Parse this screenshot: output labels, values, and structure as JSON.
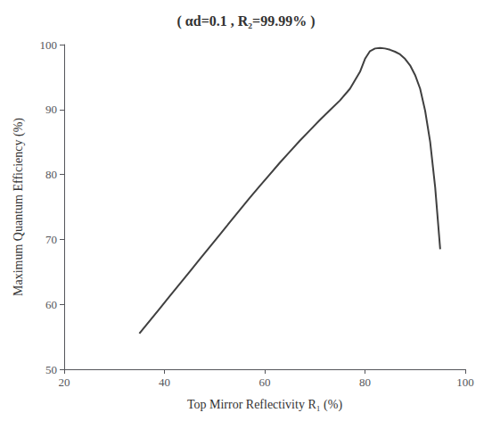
{
  "chart_data": {
    "type": "line",
    "title": "( αd=0.1 , R₂=99.99% )",
    "xlabel": "Top Mirror Reflectivity R₁ (%)",
    "ylabel": "Maximum Quantum Efficiency (%)",
    "x": [
      35.0,
      37.0,
      39.0,
      41.0,
      43.0,
      45.0,
      47.0,
      49.0,
      51.0,
      53.0,
      55.0,
      57.0,
      59.0,
      61.0,
      63.0,
      65.0,
      67.0,
      69.0,
      71.0,
      73.0,
      75.0,
      77.0,
      79.0,
      80.0,
      81.0,
      82.0,
      83.0,
      84.0,
      85.0,
      86.0,
      87.0,
      88.0,
      89.0,
      90.0,
      91.0,
      92.0,
      93.0,
      94.0,
      95.0
    ],
    "values": [
      55.5,
      57.4,
      59.3,
      61.2,
      63.1,
      65.0,
      66.9,
      68.8,
      70.7,
      72.6,
      74.5,
      76.4,
      78.2,
      80.0,
      81.8,
      83.5,
      85.2,
      86.8,
      88.4,
      89.9,
      91.4,
      93.2,
      95.8,
      97.8,
      99.0,
      99.4,
      99.5,
      99.4,
      99.2,
      98.9,
      98.5,
      97.8,
      96.8,
      95.3,
      93.2,
      89.8,
      85.0,
      78.0,
      68.5
    ],
    "color": "#404040",
    "xlim": [
      20,
      100
    ],
    "ylim": [
      50,
      100
    ],
    "xticks": [
      20,
      40,
      60,
      80,
      100
    ],
    "yticks": [
      50,
      60,
      70,
      80,
      90,
      100
    ],
    "grid": false
  }
}
